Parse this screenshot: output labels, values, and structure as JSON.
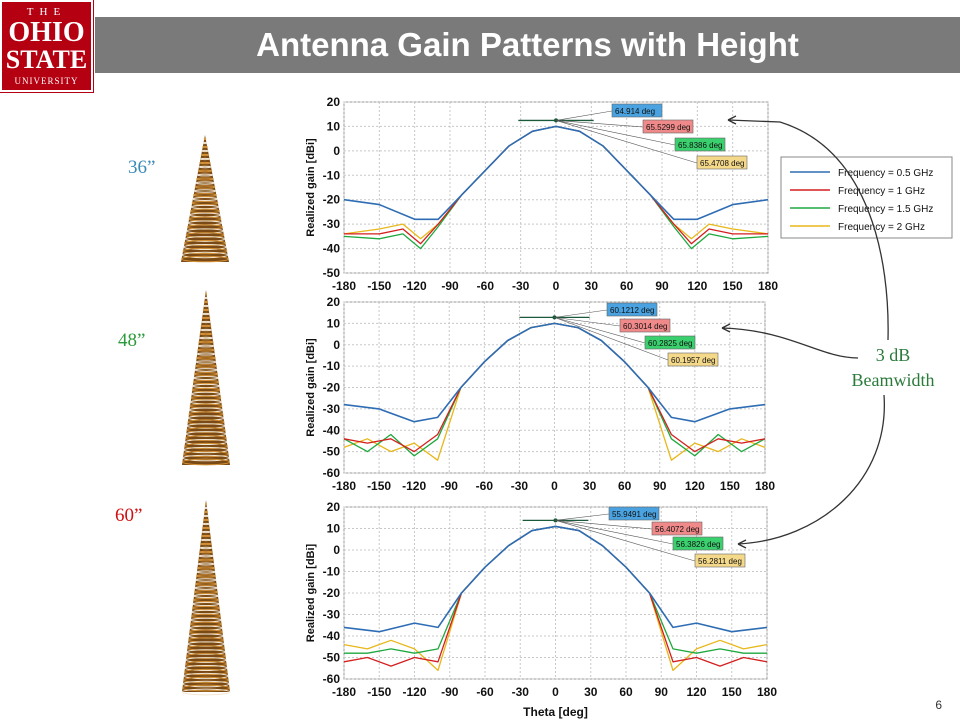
{
  "header": {
    "title": "Antenna Gain Patterns with Height"
  },
  "logo": {
    "line1": "THE",
    "line2": "OHIO",
    "line3": "STATE",
    "line4": "UNIVERSITY"
  },
  "antennas": [
    {
      "label": "36”",
      "color": "#3a8ab8"
    },
    {
      "label": "48”",
      "color": "#2a9a3a"
    },
    {
      "label": "60”",
      "color": "#d01010"
    }
  ],
  "annotation": {
    "line1": "3 dB",
    "line2": "Beamwidth"
  },
  "page_number": "6",
  "legend": {
    "entries": [
      "Frequency = 0.5 GHz",
      "Frequency = 1 GHz",
      "Frequency = 1.5 GHz",
      "Frequency = 2 GHz"
    ],
    "colors": [
      "#2e6db4",
      "#d41f1f",
      "#1fa83e",
      "#e8b71a"
    ]
  },
  "chart_data": [
    {
      "type": "line",
      "xlabel": "",
      "ylabel": "Realized gain [dBi]",
      "xlim": [
        -180,
        180
      ],
      "ylim": [
        -50,
        20
      ],
      "xticks": [
        "-180",
        "-150",
        "-120",
        "-90",
        "-60",
        "-30",
        "0",
        "30",
        "60",
        "90",
        "120",
        "150",
        "180"
      ],
      "yticks": [
        "20",
        "10",
        "0",
        "-10",
        "-20",
        "-30",
        "-40",
        "-50"
      ],
      "markers": [
        "64.914 deg",
        "65.5299 deg",
        "65.8386 deg",
        "65.4708 deg"
      ],
      "series": [
        {
          "name": "Frequency = 0.5 GHz",
          "x": [
            -180,
            -150,
            -120,
            -100,
            -80,
            -60,
            -40,
            -20,
            0,
            20,
            40,
            60,
            80,
            100,
            120,
            150,
            180
          ],
          "y": [
            -20,
            -22,
            -28,
            -28,
            -18,
            -8,
            2,
            8,
            10,
            8,
            2,
            -8,
            -18,
            -28,
            -28,
            -22,
            -20
          ]
        },
        {
          "name": "Frequency = 1 GHz",
          "x": [
            -180,
            -150,
            -130,
            -115,
            -100,
            -80,
            -60,
            -40,
            -20,
            0,
            20,
            40,
            60,
            80,
            100,
            115,
            130,
            150,
            180
          ],
          "y": [
            -34,
            -34,
            -32,
            -38,
            -30,
            -18,
            -8,
            2,
            8,
            10,
            8,
            2,
            -8,
            -18,
            -30,
            -38,
            -32,
            -34,
            -34
          ]
        },
        {
          "name": "Frequency = 1.5 GHz",
          "x": [
            -180,
            -150,
            -130,
            -115,
            -100,
            -80,
            -60,
            -40,
            -20,
            0,
            20,
            40,
            60,
            80,
            100,
            115,
            130,
            150,
            180
          ],
          "y": [
            -35,
            -36,
            -34,
            -40,
            -31,
            -18,
            -8,
            2,
            8,
            10,
            8,
            2,
            -8,
            -18,
            -31,
            -40,
            -34,
            -36,
            -35
          ]
        },
        {
          "name": "Frequency = 2 GHz",
          "x": [
            -180,
            -150,
            -130,
            -115,
            -100,
            -80,
            -60,
            -40,
            -20,
            0,
            20,
            40,
            60,
            80,
            100,
            115,
            130,
            150,
            180
          ],
          "y": [
            -34,
            -32,
            -30,
            -36,
            -30,
            -18,
            -8,
            2,
            8,
            10,
            8,
            2,
            -8,
            -18,
            -30,
            -36,
            -30,
            -32,
            -34
          ]
        }
      ]
    },
    {
      "type": "line",
      "xlabel": "",
      "ylabel": "Realized gain [dBi]",
      "xlim": [
        -180,
        180
      ],
      "ylim": [
        -60,
        20
      ],
      "xticks": [
        "-180",
        "-150",
        "-120",
        "-90",
        "-60",
        "-30",
        "0",
        "30",
        "60",
        "90",
        "120",
        "150",
        "180"
      ],
      "yticks": [
        "20",
        "10",
        "0",
        "-10",
        "-20",
        "-30",
        "-40",
        "-50",
        "-60"
      ],
      "markers": [
        "60.1212 deg",
        "60.3014 deg",
        "60.2825 deg",
        "60.1957 deg"
      ],
      "series": [
        {
          "name": "Frequency = 0.5 GHz",
          "x": [
            -180,
            -150,
            -120,
            -100,
            -80,
            -60,
            -40,
            -20,
            0,
            20,
            40,
            60,
            80,
            100,
            120,
            150,
            180
          ],
          "y": [
            -28,
            -30,
            -36,
            -34,
            -20,
            -8,
            2,
            8,
            10,
            8,
            2,
            -8,
            -20,
            -34,
            -36,
            -30,
            -28
          ]
        },
        {
          "name": "Frequency = 1 GHz",
          "x": [
            -180,
            -160,
            -140,
            -120,
            -100,
            -80,
            -60,
            -40,
            -20,
            0,
            20,
            40,
            60,
            80,
            100,
            120,
            140,
            160,
            180
          ],
          "y": [
            -44,
            -46,
            -44,
            -50,
            -42,
            -20,
            -8,
            2,
            8,
            10,
            8,
            2,
            -8,
            -20,
            -42,
            -50,
            -44,
            -46,
            -44
          ]
        },
        {
          "name": "Frequency = 1.5 GHz",
          "x": [
            -180,
            -160,
            -140,
            -120,
            -100,
            -80,
            -60,
            -40,
            -20,
            0,
            20,
            40,
            60,
            80,
            100,
            120,
            140,
            160,
            180
          ],
          "y": [
            -44,
            -50,
            -42,
            -52,
            -44,
            -20,
            -8,
            2,
            8,
            10,
            8,
            2,
            -8,
            -20,
            -44,
            -52,
            -42,
            -50,
            -44
          ]
        },
        {
          "name": "Frequency = 2 GHz",
          "x": [
            -180,
            -160,
            -140,
            -120,
            -100,
            -80,
            -60,
            -40,
            -20,
            0,
            20,
            40,
            60,
            80,
            100,
            120,
            140,
            160,
            180
          ],
          "y": [
            -48,
            -44,
            -50,
            -46,
            -54,
            -20,
            -8,
            2,
            8,
            10,
            8,
            2,
            -8,
            -20,
            -54,
            -46,
            -50,
            -44,
            -48
          ]
        }
      ]
    },
    {
      "type": "line",
      "xlabel": "Theta [deg]",
      "ylabel": "Realized gain [dBi]",
      "xlim": [
        -180,
        180
      ],
      "ylim": [
        -60,
        20
      ],
      "xticks": [
        "-180",
        "-150",
        "-120",
        "-90",
        "-60",
        "-30",
        "0",
        "30",
        "60",
        "90",
        "120",
        "150",
        "180"
      ],
      "yticks": [
        "20",
        "10",
        "0",
        "-10",
        "-20",
        "-30",
        "-40",
        "-50",
        "-60"
      ],
      "markers": [
        "55.9491 deg",
        "56.4072 deg",
        "56.3826 deg",
        "56.2811 deg"
      ],
      "series": [
        {
          "name": "Frequency = 0.5 GHz",
          "x": [
            -180,
            -150,
            -120,
            -100,
            -80,
            -60,
            -40,
            -20,
            0,
            20,
            40,
            60,
            80,
            100,
            120,
            150,
            180
          ],
          "y": [
            -36,
            -38,
            -34,
            -36,
            -20,
            -8,
            2,
            9,
            11,
            9,
            2,
            -8,
            -20,
            -36,
            -34,
            -38,
            -36
          ]
        },
        {
          "name": "Frequency = 1 GHz",
          "x": [
            -180,
            -160,
            -140,
            -120,
            -100,
            -80,
            -60,
            -40,
            -20,
            0,
            20,
            40,
            60,
            80,
            100,
            120,
            140,
            160,
            180
          ],
          "y": [
            -52,
            -50,
            -54,
            -50,
            -52,
            -20,
            -8,
            2,
            9,
            11,
            9,
            2,
            -8,
            -20,
            -52,
            -50,
            -54,
            -50,
            -52
          ]
        },
        {
          "name": "Frequency = 1.5 GHz",
          "x": [
            -180,
            -160,
            -140,
            -120,
            -100,
            -80,
            -60,
            -40,
            -20,
            0,
            20,
            40,
            60,
            80,
            100,
            120,
            140,
            160,
            180
          ],
          "y": [
            -48,
            -48,
            -46,
            -48,
            -46,
            -20,
            -8,
            2,
            9,
            11,
            9,
            2,
            -8,
            -20,
            -46,
            -48,
            -46,
            -48,
            -48
          ]
        },
        {
          "name": "Frequency = 2 GHz",
          "x": [
            -180,
            -160,
            -140,
            -120,
            -100,
            -80,
            -60,
            -40,
            -20,
            0,
            20,
            40,
            60,
            80,
            100,
            120,
            140,
            160,
            180
          ],
          "y": [
            -44,
            -46,
            -42,
            -46,
            -56,
            -20,
            -8,
            2,
            9,
            11,
            9,
            2,
            -8,
            -20,
            -56,
            -46,
            -42,
            -46,
            -44
          ]
        }
      ]
    }
  ]
}
